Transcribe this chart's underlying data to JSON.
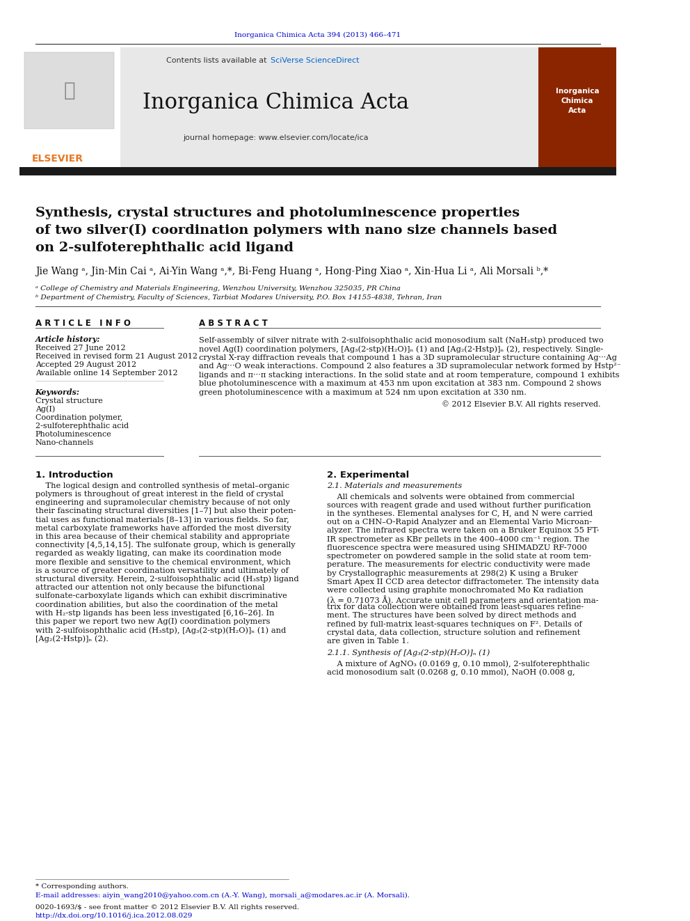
{
  "page_bg": "#ffffff",
  "journal_ref_text": "Inorganica Chimica Acta 394 (2013) 466–471",
  "journal_ref_color": "#0000cc",
  "contents_text": "Contents lists available at ",
  "sciverse_text": "SciVerse ScienceDirect",
  "sciverse_color": "#0066cc",
  "journal_name": "Inorganica Chimica Acta",
  "journal_homepage": "journal homepage: www.elsevier.com/locate/ica",
  "header_bg": "#e8e8e8",
  "dark_bar_color": "#1a1a1a",
  "title": "Synthesis, crystal structures and photoluminescence properties\nof two silver(I) coordination polymers with nano size channels based\non 2-sulfoterephthalic acid ligand",
  "authors": "Jie Wang ᵃ, Jin-Min Cai ᵃ, Ai-Yin Wang ᵃ,*, Bi-Feng Huang ᵃ, Hong-Ping Xiao ᵃ, Xin-Hua Li ᵃ, Ali Morsali ᵇ,*",
  "affil_a": "ᵃ College of Chemistry and Materials Engineering, Wenzhou University, Wenzhou 325035, PR China",
  "affil_b": "ᵇ Department of Chemistry, Faculty of Sciences, Tarbiat Modares University, P.O. Box 14155-4838, Tehran, Iran",
  "article_info_header": "A R T I C L E   I N F O",
  "abstract_header": "A B S T R A C T",
  "article_history_label": "Article history:",
  "received1": "Received 27 June 2012",
  "received2": "Received in revised form 21 August 2012",
  "accepted": "Accepted 29 August 2012",
  "available": "Available online 14 September 2012",
  "keywords_label": "Keywords:",
  "keywords": [
    "Crystal structure",
    "Ag(I)",
    "Coordination polymer,",
    "2-sulfoterephthalic acid",
    "Photoluminescence",
    "Nano-channels"
  ],
  "copyright": "© 2012 Elsevier B.V. All rights reserved.",
  "intro_header": "1. Introduction",
  "experimental_header": "2. Experimental",
  "experimental_sub": "2.1. Materials and measurements",
  "synth_sub": "2.1.1. Synthesis of [Ag₃(2-stp)(H₂O)]ₙ (1)",
  "footer_text1": "* Corresponding authors.",
  "footer_email": "E-mail addresses: aiyin_wang2010@yahoo.com.cn (A.-Y. Wang), morsali_a@modares.ac.ir (A. Morsali).",
  "footer_issn": "0020-1693/$ - see front matter © 2012 Elsevier B.V. All rights reserved.",
  "footer_doi": "http://dx.doi.org/10.1016/j.ica.2012.08.029"
}
